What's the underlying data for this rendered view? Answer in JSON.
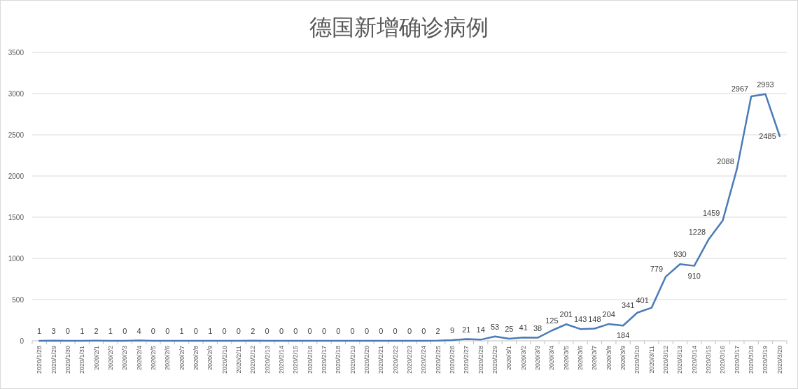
{
  "chart_data": {
    "type": "line",
    "title": "德国新增确诊病例",
    "categories": [
      "2020/1/28",
      "2020/1/29",
      "2020/1/30",
      "2020/1/31",
      "2020/2/1",
      "2020/2/2",
      "2020/2/3",
      "2020/2/4",
      "2020/2/5",
      "2020/2/6",
      "2020/2/7",
      "2020/2/8",
      "2020/2/9",
      "2020/2/10",
      "2020/2/11",
      "2020/2/12",
      "2020/2/13",
      "2020/2/14",
      "2020/2/15",
      "2020/2/16",
      "2020/2/17",
      "2020/2/18",
      "2020/2/19",
      "2020/2/20",
      "2020/2/21",
      "2020/2/22",
      "2020/2/23",
      "2020/2/24",
      "2020/2/25",
      "2020/2/26",
      "2020/2/27",
      "2020/2/28",
      "2020/2/29",
      "2020/3/1",
      "2020/3/2",
      "2020/3/3",
      "2020/3/4",
      "2020/3/5",
      "2020/3/6",
      "2020/3/7",
      "2020/3/8",
      "2020/3/9",
      "2020/3/10",
      "2020/3/11",
      "2020/3/12",
      "2020/3/13",
      "2020/3/14",
      "2020/3/15",
      "2020/3/16",
      "2020/3/17",
      "2020/3/18",
      "2020/3/19",
      "2020/3/20"
    ],
    "series": [
      {
        "color": "#4a7bb7",
        "values": [
          1,
          3,
          0,
          1,
          2,
          1,
          0,
          4,
          0,
          0,
          1,
          0,
          1,
          0,
          0,
          2,
          0,
          0,
          0,
          0,
          0,
          0,
          0,
          0,
          0,
          0,
          0,
          0,
          2,
          9,
          21,
          14,
          53,
          25,
          41,
          38,
          125,
          201,
          143,
          148,
          204,
          184,
          341,
          401,
          779,
          930,
          910,
          1228,
          1459,
          2088,
          2967,
          2993,
          2485
        ]
      }
    ],
    "ylim": [
      0,
      3500
    ],
    "yticks": [
      0,
      500,
      1000,
      1500,
      2000,
      2500,
      3000,
      3500
    ],
    "grid": "y",
    "data_labels": true,
    "marker": "none",
    "line_style": "solid"
  }
}
